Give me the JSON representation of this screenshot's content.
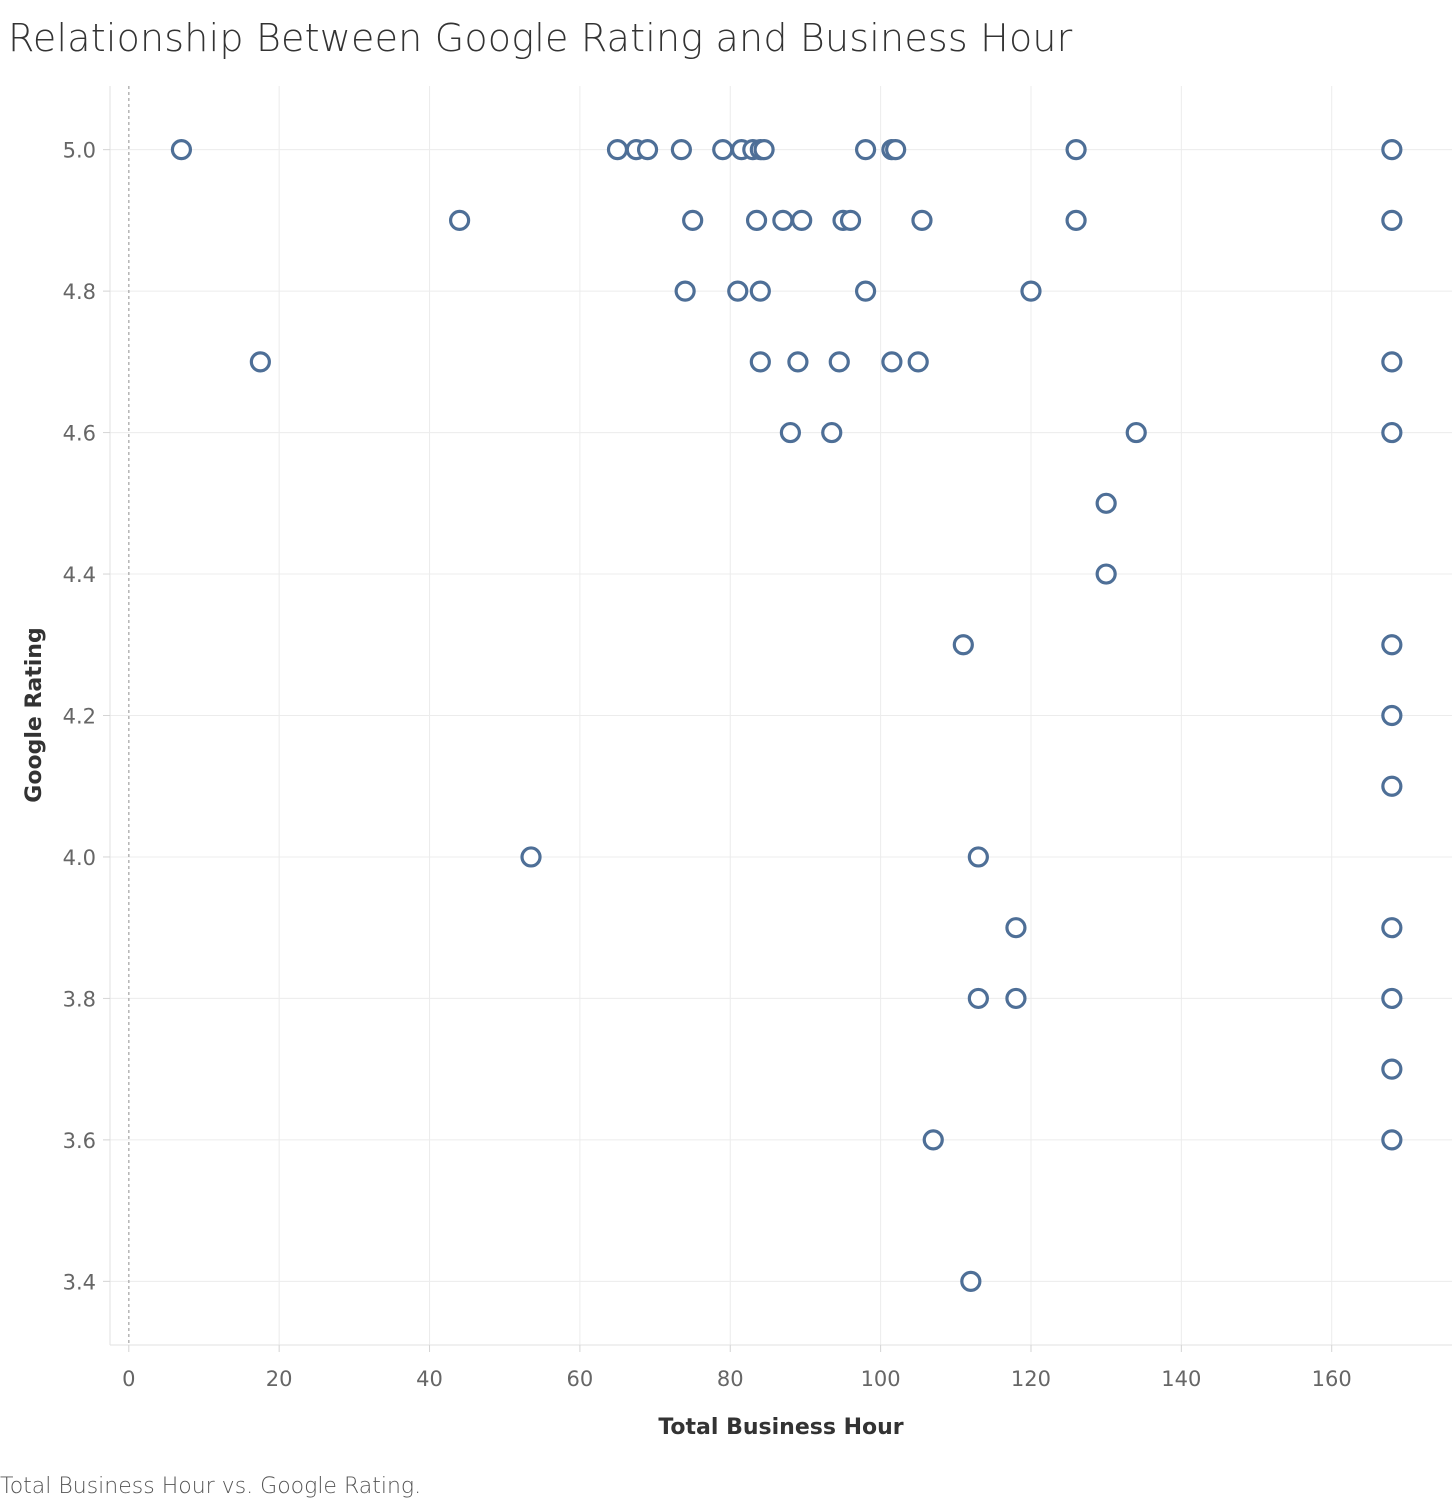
{
  "chart_data": {
    "type": "scatter",
    "title": "Relationship Between Google Rating and Business Hour",
    "caption": "Total Business Hour vs. Google Rating.",
    "xlabel": "Total Business Hour",
    "ylabel": "Google Rating",
    "xlim": [
      -2.5,
      176
    ],
    "ylim": [
      3.31,
      5.09
    ],
    "xticks": [
      0,
      20,
      40,
      60,
      80,
      100,
      120,
      140,
      160
    ],
    "yticks": [
      3.4,
      3.6,
      3.8,
      4.0,
      4.2,
      4.4,
      4.6,
      4.8,
      5.0
    ],
    "grid": true,
    "marker": "hollow-circle",
    "color": "#4e6f97",
    "series": [
      {
        "points": [
          [
            7,
            5.0
          ],
          [
            65,
            5.0
          ],
          [
            67.5,
            5.0
          ],
          [
            69,
            5.0
          ],
          [
            73.5,
            5.0
          ],
          [
            79,
            5.0
          ],
          [
            81.5,
            5.0
          ],
          [
            83,
            5.0
          ],
          [
            84,
            5.0
          ],
          [
            84.5,
            5.0
          ],
          [
            98,
            5.0
          ],
          [
            101.5,
            5.0
          ],
          [
            102,
            5.0
          ],
          [
            126,
            5.0
          ],
          [
            168,
            5.0
          ],
          [
            44,
            4.9
          ],
          [
            75,
            4.9
          ],
          [
            83.5,
            4.9
          ],
          [
            87,
            4.9
          ],
          [
            89.5,
            4.9
          ],
          [
            95,
            4.9
          ],
          [
            96,
            4.9
          ],
          [
            105.5,
            4.9
          ],
          [
            126,
            4.9
          ],
          [
            168,
            4.9
          ],
          [
            74,
            4.8
          ],
          [
            81,
            4.8
          ],
          [
            84,
            4.8
          ],
          [
            98,
            4.8
          ],
          [
            120,
            4.8
          ],
          [
            17.5,
            4.7
          ],
          [
            84,
            4.7
          ],
          [
            89,
            4.7
          ],
          [
            94.5,
            4.7
          ],
          [
            101.5,
            4.7
          ],
          [
            105,
            4.7
          ],
          [
            168,
            4.7
          ],
          [
            88,
            4.6
          ],
          [
            93.5,
            4.6
          ],
          [
            134,
            4.6
          ],
          [
            168,
            4.6
          ],
          [
            130,
            4.5
          ],
          [
            130,
            4.4
          ],
          [
            111,
            4.3
          ],
          [
            168,
            4.3
          ],
          [
            168,
            4.2
          ],
          [
            168,
            4.1
          ],
          [
            53.5,
            4.0
          ],
          [
            113,
            4.0
          ],
          [
            118,
            3.9
          ],
          [
            168,
            3.9
          ],
          [
            113,
            3.8
          ],
          [
            118,
            3.8
          ],
          [
            168,
            3.8
          ],
          [
            168,
            3.7
          ],
          [
            107,
            3.6
          ],
          [
            168,
            3.6
          ],
          [
            112,
            3.4
          ]
        ]
      }
    ]
  }
}
